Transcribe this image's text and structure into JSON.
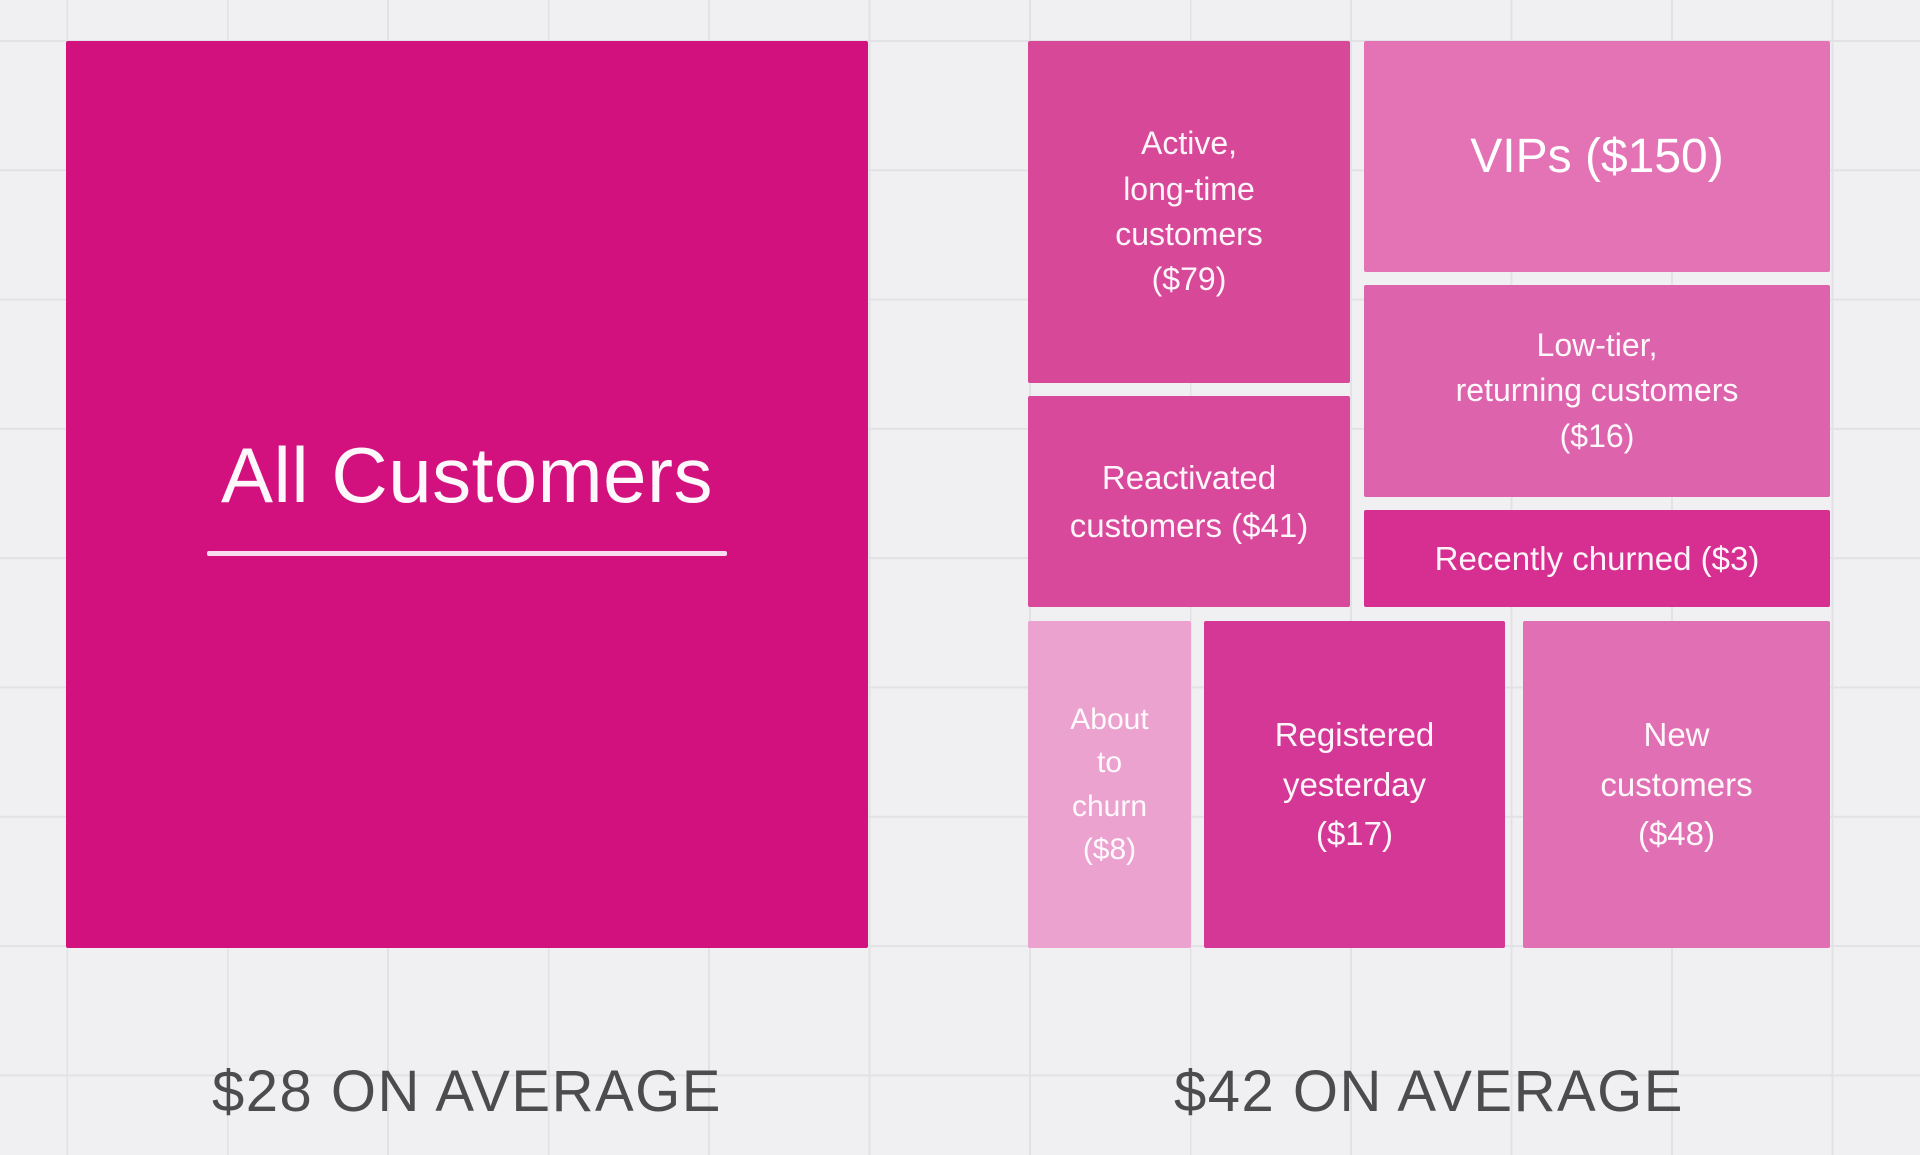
{
  "left_panel": {
    "title": "All Customers",
    "caption": "$28 ON AVERAGE",
    "average_usd": 28,
    "color": "#d2117f"
  },
  "right_panel": {
    "caption": "$42 ON AVERAGE",
    "average_usd": 42,
    "segments": {
      "active": {
        "name": "Active, long-time customers",
        "value_usd": 79,
        "label": "Active,\nlong-time\ncustomers\n($79)",
        "color": "#d84899"
      },
      "vips": {
        "name": "VIPs",
        "value_usd": 150,
        "label": "VIPs ($150)",
        "color": "#e473b6"
      },
      "low_tier": {
        "name": "Low-tier, returning customers",
        "value_usd": 16,
        "label": "Low-tier,\nreturning customers\n($16)",
        "color": "#dd63ac"
      },
      "recently_churned": {
        "name": "Recently churned",
        "value_usd": 3,
        "label": "Recently churned ($3)",
        "color": "#d62e91"
      },
      "reactivated": {
        "name": "Reactivated customers",
        "value_usd": 41,
        "label": "Reactivated\ncustomers ($41)",
        "color": "#d8499c"
      },
      "about_to_churn": {
        "name": "About to churn",
        "value_usd": 8,
        "label": "About\nto\nchurn\n($8)",
        "color": "#eca2cf"
      },
      "registered_yesterday": {
        "name": "Registered yesterday",
        "value_usd": 17,
        "label": "Registered\nyesterday\n($17)",
        "color": "#d43795"
      },
      "new_customers": {
        "name": "New customers",
        "value_usd": 48,
        "label": "New\ncustomers\n($48)",
        "color": "#e16fb3"
      }
    }
  },
  "chart_data": {
    "type": "treemap",
    "title": "",
    "unit": "USD average value per customer",
    "groups": [
      {
        "caption": "$28 ON AVERAGE",
        "average_value_usd": 28,
        "segments": [
          {
            "name": "All Customers",
            "value_usd": 28
          }
        ]
      },
      {
        "caption": "$42 ON AVERAGE",
        "average_value_usd": 42,
        "segments": [
          {
            "name": "Active, long-time customers",
            "value_usd": 79
          },
          {
            "name": "VIPs",
            "value_usd": 150
          },
          {
            "name": "Low-tier, returning customers",
            "value_usd": 16
          },
          {
            "name": "Recently churned",
            "value_usd": 3
          },
          {
            "name": "Reactivated customers",
            "value_usd": 41
          },
          {
            "name": "About to churn",
            "value_usd": 8
          },
          {
            "name": "Registered yesterday",
            "value_usd": 17
          },
          {
            "name": "New customers",
            "value_usd": 48
          }
        ]
      }
    ],
    "layout_hints": {
      "left_group": "single large square",
      "right_group": "treemap of 8 segments",
      "background": "light gray spreadsheet grid",
      "label_color": "#ffffff",
      "caption_color": "#4c4c4e"
    }
  }
}
